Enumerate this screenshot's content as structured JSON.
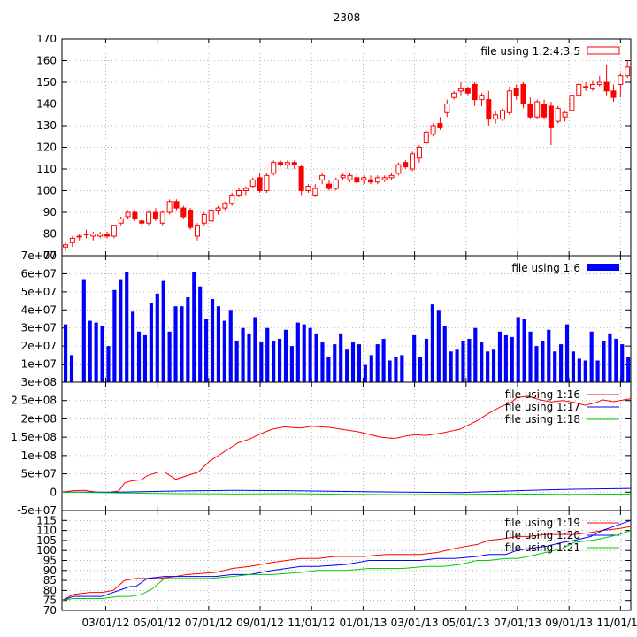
{
  "title": "2308",
  "x_ticks": [
    "03/01/12",
    "05/01/12",
    "07/01/12",
    "09/01/12",
    "11/01/12",
    "01/01/13",
    "03/01/13",
    "05/01/13",
    "07/01/13",
    "09/01/13",
    "11/01/13"
  ],
  "colors": {
    "red": "#ff0000",
    "blue": "#0000ff",
    "green": "#00cc00",
    "grid": "#a0a0a0"
  },
  "chart_data": [
    {
      "type": "candlestick",
      "legend": "file using 1:2:4:3:5",
      "legend_position": "top-right",
      "ylim": [
        70,
        170
      ],
      "yticks": [
        "70",
        "80",
        "90",
        "100",
        "110",
        "120",
        "130",
        "140",
        "150",
        "160",
        "170"
      ],
      "grid": true,
      "candles": [
        {
          "o": 74,
          "h": 76,
          "l": 72,
          "c": 75
        },
        {
          "o": 76,
          "h": 79,
          "l": 74,
          "c": 78
        },
        {
          "o": 79,
          "h": 80,
          "l": 77,
          "c": 79
        },
        {
          "o": 80,
          "h": 82,
          "l": 78,
          "c": 80
        },
        {
          "o": 79,
          "h": 81,
          "l": 77,
          "c": 80
        },
        {
          "o": 79,
          "h": 81,
          "l": 78,
          "c": 80
        },
        {
          "o": 80,
          "h": 81,
          "l": 78,
          "c": 79
        },
        {
          "o": 79,
          "h": 84,
          "l": 78,
          "c": 84
        },
        {
          "o": 85,
          "h": 88,
          "l": 84,
          "c": 87
        },
        {
          "o": 88,
          "h": 91,
          "l": 87,
          "c": 90
        },
        {
          "o": 90,
          "h": 91,
          "l": 86,
          "c": 87
        },
        {
          "o": 86,
          "h": 87,
          "l": 83,
          "c": 85
        },
        {
          "o": 85,
          "h": 91,
          "l": 84,
          "c": 90
        },
        {
          "o": 90,
          "h": 92,
          "l": 86,
          "c": 87
        },
        {
          "o": 85,
          "h": 91,
          "l": 84,
          "c": 90
        },
        {
          "o": 90,
          "h": 96,
          "l": 89,
          "c": 95
        },
        {
          "o": 95,
          "h": 96,
          "l": 91,
          "c": 92
        },
        {
          "o": 92,
          "h": 93,
          "l": 87,
          "c": 88
        },
        {
          "o": 91,
          "h": 92,
          "l": 82,
          "c": 83
        },
        {
          "o": 79,
          "h": 85,
          "l": 77,
          "c": 84
        },
        {
          "o": 85,
          "h": 90,
          "l": 84,
          "c": 89
        },
        {
          "o": 86,
          "h": 92,
          "l": 85,
          "c": 91
        },
        {
          "o": 91,
          "h": 93,
          "l": 89,
          "c": 92
        },
        {
          "o": 92,
          "h": 95,
          "l": 91,
          "c": 94
        },
        {
          "o": 94,
          "h": 99,
          "l": 93,
          "c": 98
        },
        {
          "o": 98,
          "h": 101,
          "l": 97,
          "c": 100
        },
        {
          "o": 100,
          "h": 102,
          "l": 98,
          "c": 101
        },
        {
          "o": 102,
          "h": 106,
          "l": 101,
          "c": 105
        },
        {
          "o": 106,
          "h": 108,
          "l": 99,
          "c": 100
        },
        {
          "o": 100,
          "h": 108,
          "l": 99,
          "c": 107
        },
        {
          "o": 108,
          "h": 114,
          "l": 107,
          "c": 113
        },
        {
          "o": 113,
          "h": 114,
          "l": 111,
          "c": 112
        },
        {
          "o": 112,
          "h": 114,
          "l": 110,
          "c": 113
        },
        {
          "o": 113,
          "h": 114,
          "l": 110,
          "c": 112
        },
        {
          "o": 111,
          "h": 112,
          "l": 98,
          "c": 100
        },
        {
          "o": 100,
          "h": 103,
          "l": 99,
          "c": 102
        },
        {
          "o": 98,
          "h": 103,
          "l": 97,
          "c": 101
        },
        {
          "o": 105,
          "h": 108,
          "l": 103,
          "c": 107
        },
        {
          "o": 103,
          "h": 105,
          "l": 100,
          "c": 101
        },
        {
          "o": 101,
          "h": 106,
          "l": 100,
          "c": 105
        },
        {
          "o": 106,
          "h": 108,
          "l": 105,
          "c": 107
        },
        {
          "o": 105,
          "h": 108,
          "l": 104,
          "c": 107
        },
        {
          "o": 106,
          "h": 108,
          "l": 103,
          "c": 104
        },
        {
          "o": 105,
          "h": 107,
          "l": 103,
          "c": 106
        },
        {
          "o": 105,
          "h": 107,
          "l": 103,
          "c": 104
        },
        {
          "o": 104,
          "h": 107,
          "l": 103,
          "c": 106
        },
        {
          "o": 105,
          "h": 107,
          "l": 104,
          "c": 106
        },
        {
          "o": 106,
          "h": 108,
          "l": 105,
          "c": 107
        },
        {
          "o": 108,
          "h": 113,
          "l": 107,
          "c": 112
        },
        {
          "o": 113,
          "h": 114,
          "l": 110,
          "c": 111
        },
        {
          "o": 110,
          "h": 118,
          "l": 109,
          "c": 117
        },
        {
          "o": 115,
          "h": 121,
          "l": 113,
          "c": 120
        },
        {
          "o": 122,
          "h": 128,
          "l": 121,
          "c": 127
        },
        {
          "o": 126,
          "h": 131,
          "l": 125,
          "c": 130
        },
        {
          "o": 131,
          "h": 134,
          "l": 128,
          "c": 129
        },
        {
          "o": 136,
          "h": 142,
          "l": 134,
          "c": 140
        },
        {
          "o": 143,
          "h": 146,
          "l": 142,
          "c": 145
        },
        {
          "o": 146,
          "h": 150,
          "l": 144,
          "c": 147
        },
        {
          "o": 147,
          "h": 148,
          "l": 144,
          "c": 145
        },
        {
          "o": 149,
          "h": 150,
          "l": 139,
          "c": 142
        },
        {
          "o": 142,
          "h": 145,
          "l": 139,
          "c": 144
        },
        {
          "o": 142,
          "h": 146,
          "l": 130,
          "c": 133
        },
        {
          "o": 133,
          "h": 137,
          "l": 131,
          "c": 135
        },
        {
          "o": 133,
          "h": 138,
          "l": 132,
          "c": 137
        },
        {
          "o": 136,
          "h": 148,
          "l": 135,
          "c": 146
        },
        {
          "o": 147,
          "h": 149,
          "l": 142,
          "c": 144
        },
        {
          "o": 149,
          "h": 150,
          "l": 138,
          "c": 140
        },
        {
          "o": 140,
          "h": 143,
          "l": 133,
          "c": 134
        },
        {
          "o": 134,
          "h": 142,
          "l": 133,
          "c": 141
        },
        {
          "o": 140,
          "h": 142,
          "l": 133,
          "c": 134
        },
        {
          "o": 139,
          "h": 141,
          "l": 121,
          "c": 129
        },
        {
          "o": 132,
          "h": 139,
          "l": 131,
          "c": 138
        },
        {
          "o": 134,
          "h": 137,
          "l": 132,
          "c": 136
        },
        {
          "o": 137,
          "h": 145,
          "l": 136,
          "c": 144
        },
        {
          "o": 144,
          "h": 151,
          "l": 143,
          "c": 149
        },
        {
          "o": 148,
          "h": 150,
          "l": 146,
          "c": 148
        },
        {
          "o": 147,
          "h": 151,
          "l": 146,
          "c": 149
        },
        {
          "o": 149,
          "h": 153,
          "l": 148,
          "c": 150
        },
        {
          "o": 150,
          "h": 158,
          "l": 144,
          "c": 146
        },
        {
          "o": 146,
          "h": 149,
          "l": 141,
          "c": 143
        },
        {
          "o": 149,
          "h": 154,
          "l": 143,
          "c": 153
        },
        {
          "o": 153,
          "h": 160,
          "l": 152,
          "c": 157
        }
      ]
    },
    {
      "type": "bar",
      "legend": "file using 1:6",
      "legend_position": "top-right",
      "ylim": [
        0,
        70000000
      ],
      "yticks": [
        "1e+07",
        "2e+07",
        "3e+07",
        "4e+07",
        "5e+07",
        "6e+07",
        "7e+07"
      ],
      "grid": true,
      "values": [
        32000000.0,
        15000000.0,
        0,
        57000000.0,
        34000000.0,
        33000000.0,
        31000000.0,
        20000000.0,
        51000000.0,
        57000000.0,
        61000000.0,
        39000000.0,
        28000000.0,
        26000000.0,
        44000000.0,
        49000000.0,
        56000000.0,
        28000000.0,
        42000000.0,
        42000000.0,
        47000000.0,
        61000000.0,
        53000000.0,
        35000000.0,
        46000000.0,
        42000000.0,
        34000000.0,
        40000000.0,
        23000000.0,
        30000000.0,
        27000000.0,
        36000000.0,
        22000000.0,
        30000000.0,
        23000000.0,
        24000000.0,
        29000000.0,
        20000000.0,
        33000000.0,
        32000000.0,
        30000000.0,
        27000000.0,
        22000000.0,
        14000000.0,
        21000000.0,
        27000000.0,
        18000000.0,
        22000000.0,
        21000000.0,
        10000000.0,
        15000000.0,
        21000000.0,
        24000000.0,
        12000000.0,
        14000000.0,
        15000000.0,
        0,
        26000000.0,
        14000000.0,
        24000000.0,
        43000000.0,
        40000000.0,
        31000000.0,
        17000000.0,
        18000000.0,
        23000000.0,
        24000000.0,
        30000000.0,
        22000000.0,
        17000000.0,
        18000000.0,
        28000000.0,
        26000000.0,
        25000000.0,
        36000000.0,
        35000000.0,
        28000000.0,
        20000000.0,
        23000000.0,
        29000000.0,
        17000000.0,
        21000000.0,
        32000000.0,
        17000000.0,
        13000000.0,
        12000000.0,
        28000000.0,
        12000000.0,
        23000000.0,
        27000000.0,
        24000000.0,
        21000000.0,
        14000000.0
      ]
    },
    {
      "type": "line",
      "ylim": [
        -50000000,
        300000000
      ],
      "yticks": [
        "-5e+07",
        "0",
        "5e+07",
        "1e+08",
        "1.5e+08",
        "2e+08",
        "2.5e+08",
        "3e+08"
      ],
      "grid": true,
      "series": [
        {
          "name": "file using 1:16",
          "color": "#ff0000",
          "x": [
            0,
            4,
            8,
            12,
            16,
            18,
            20,
            22,
            24,
            28,
            30,
            34,
            36,
            40,
            44,
            48,
            52,
            58,
            62,
            66,
            70,
            74,
            78,
            84,
            88,
            94,
            98,
            104,
            108,
            112,
            116,
            118,
            120,
            124,
            128,
            134,
            140,
            146,
            150,
            154,
            158,
            160,
            164,
            168,
            172,
            176,
            180,
            184,
            188,
            190,
            194,
            200
          ],
          "y": [
            0.0,
            4000000.0,
            5000000.0,
            0,
            -1000000.0,
            1000000.0,
            3000000.0,
            25000000.0,
            30000000.0,
            34000000.0,
            45000000.0,
            55000000.0,
            55000000.0,
            35000000.0,
            45000000.0,
            55000000.0,
            85000000.0,
            115000000.0,
            135000000.0,
            145000000.0,
            160000000.0,
            172000000.0,
            178000000.0,
            175000000.0,
            180000000.0,
            177000000.0,
            172000000.0,
            165000000.0,
            158000000.0,
            150000000.0,
            147000000.0,
            148000000.0,
            152000000.0,
            157000000.0,
            155000000.0,
            162000000.0,
            172000000.0,
            195000000.0,
            215000000.0,
            232000000.0,
            245000000.0,
            258000000.0,
            262000000.0,
            252000000.0,
            246000000.0,
            250000000.0,
            245000000.0,
            237000000.0,
            245000000.0,
            252000000.0,
            247000000.0,
            255000000.0
          ]
        },
        {
          "name": "file using 1:17",
          "color": "#0000ff",
          "x": [
            0,
            20,
            40,
            60,
            80,
            100,
            120,
            140,
            160,
            180,
            200
          ],
          "y": [
            0,
            0,
            3000000.0,
            5000000.0,
            4000000.0,
            2000000.0,
            0,
            -1000000.0,
            4000000.0,
            8000000.0,
            10000000.0
          ]
        },
        {
          "name": "file using 1:18",
          "color": "#00cc00",
          "x": [
            0,
            20,
            40,
            60,
            80,
            100,
            120,
            140,
            160,
            180,
            200
          ],
          "y": [
            0,
            -2000000.0,
            -4000000.0,
            -5000000.0,
            -4000000.0,
            -6000000.0,
            -7000000.0,
            -6000000.0,
            -5000000.0,
            -6000000.0,
            -5000000.0
          ]
        }
      ]
    },
    {
      "type": "line",
      "ylim": [
        70,
        120
      ],
      "yticks": [
        "70",
        "75",
        "80",
        "85",
        "90",
        "95",
        "100",
        "105",
        "110",
        "115"
      ],
      "grid": true,
      "series": [
        {
          "name": "file using 1:19",
          "color": "#ff0000",
          "x": [
            0,
            4,
            10,
            14,
            18,
            22,
            26,
            34,
            40,
            44,
            54,
            60,
            66,
            74,
            84,
            90,
            96,
            106,
            114,
            120,
            126,
            132,
            138,
            146,
            150,
            156,
            160,
            164,
            170,
            176,
            180,
            186,
            190,
            196,
            200
          ],
          "y": [
            75,
            78,
            79,
            79,
            80,
            85,
            86,
            86,
            87,
            88,
            89,
            91,
            92,
            94,
            96,
            96,
            97,
            97,
            98,
            98,
            98,
            99,
            101,
            103,
            105,
            106,
            107,
            107,
            108,
            108,
            108,
            109,
            110,
            111,
            112
          ]
        },
        {
          "name": "file using 1:20",
          "color": "#0000ff",
          "x": [
            0,
            4,
            10,
            14,
            16,
            20,
            24,
            26,
            30,
            36,
            44,
            54,
            60,
            66,
            74,
            84,
            90,
            100,
            108,
            114,
            120,
            126,
            132,
            138,
            146,
            150,
            156,
            160,
            164,
            170,
            176,
            180,
            186,
            190,
            196,
            200
          ],
          "y": [
            75,
            77,
            77,
            77,
            78,
            80,
            82,
            82,
            86,
            87,
            87,
            87,
            88,
            88,
            90,
            92,
            92,
            93,
            95,
            95,
            95,
            95,
            96,
            96,
            97,
            98,
            98,
            100,
            101,
            102,
            104,
            105,
            107,
            110,
            113,
            115
          ]
        },
        {
          "name": "file using 1:21",
          "color": "#00cc00",
          "x": [
            0,
            4,
            10,
            14,
            20,
            24,
            28,
            32,
            36,
            44,
            52,
            60,
            66,
            74,
            84,
            90,
            100,
            108,
            114,
            120,
            128,
            134,
            140,
            146,
            150,
            156,
            160,
            164,
            170,
            176,
            180,
            186,
            190,
            196,
            200
          ],
          "y": [
            75,
            76,
            76,
            76,
            77,
            77,
            78,
            81,
            86,
            86,
            86,
            87,
            88,
            88,
            89,
            90,
            90,
            91,
            91,
            91,
            92,
            92,
            93,
            95,
            95,
            96,
            96,
            97,
            99,
            101,
            104,
            105,
            106,
            108,
            110
          ]
        }
      ]
    }
  ]
}
